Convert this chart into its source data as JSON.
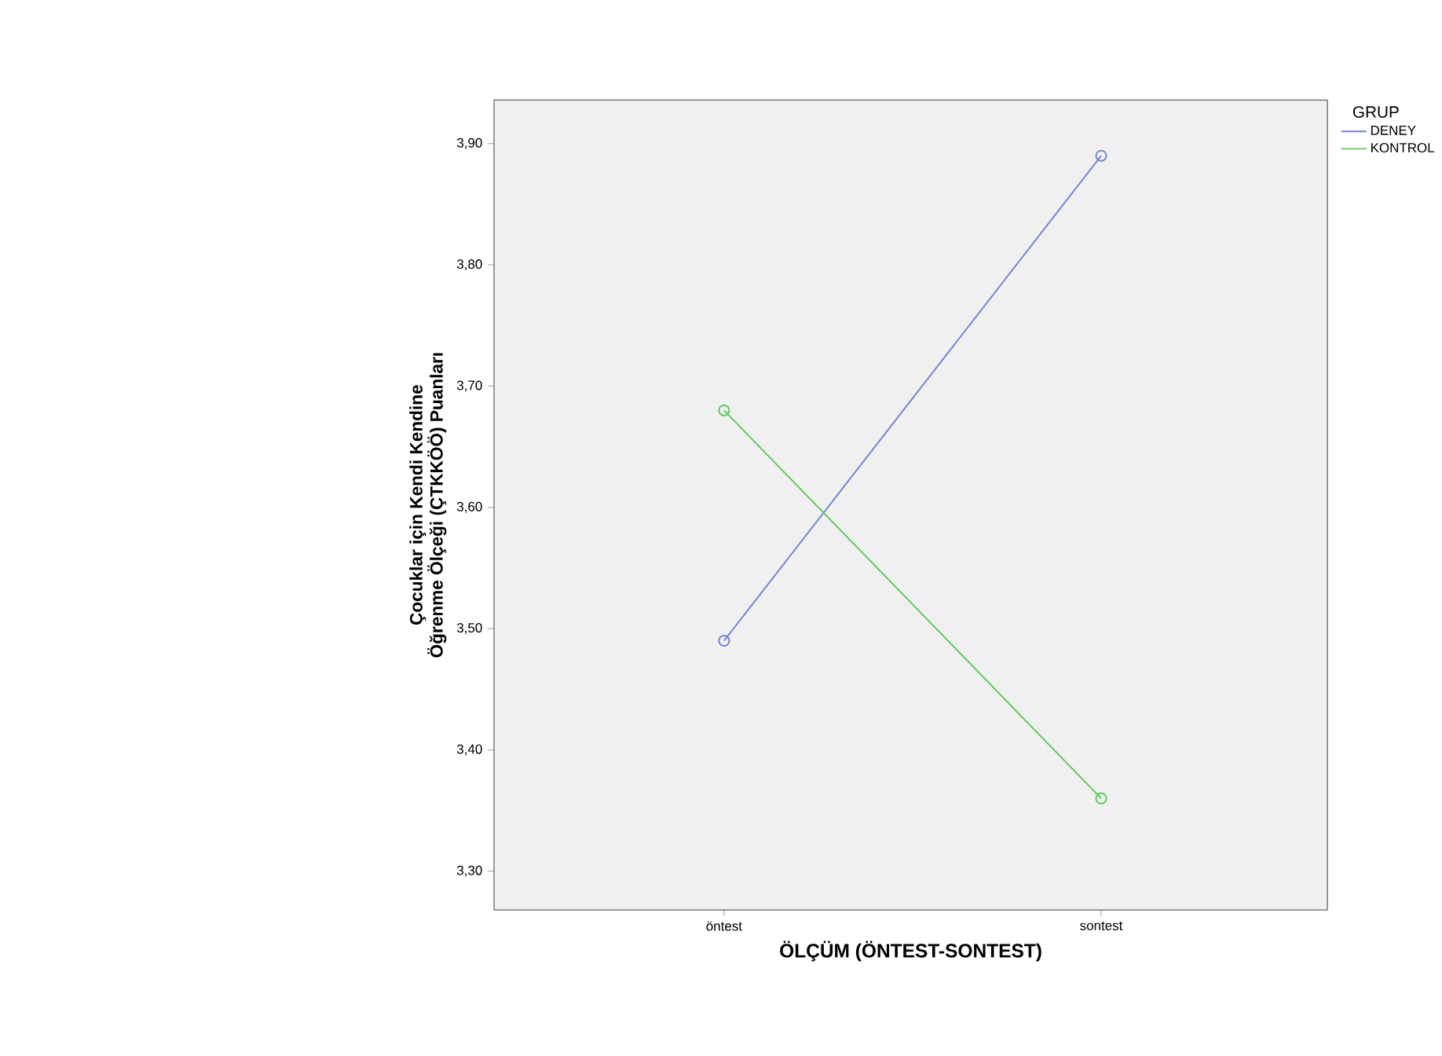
{
  "chart_data": {
    "type": "line",
    "xlabel": "ÖLÇÜM (ÖNTEST-SONTEST)",
    "ylabel": "Çocuklar için Kendi Kendine Öğrenme Ölçeği (ÇTKKÖÖ) Puanları",
    "legend_title": "GRUP",
    "categories": [
      "öntest",
      "sontest"
    ],
    "series": [
      {
        "name": "DENEY",
        "color": "#6b7fd0",
        "values": [
          3.49,
          3.89
        ]
      },
      {
        "name": "KONTROL",
        "color": "#5bc85b",
        "values": [
          3.68,
          3.36
        ]
      }
    ],
    "ylim": [
      3.268,
      3.936
    ],
    "yticks": [
      {
        "value": 3.3,
        "label": "3,30"
      },
      {
        "value": 3.4,
        "label": "3,40"
      },
      {
        "value": 3.5,
        "label": "3,50"
      },
      {
        "value": 3.6,
        "label": "3,60"
      },
      {
        "value": 3.7,
        "label": "3,70"
      },
      {
        "value": 3.8,
        "label": "3,80"
      },
      {
        "value": 3.9,
        "label": "3,90"
      }
    ],
    "grid": false,
    "legend": "top right",
    "marker": "circle",
    "line_style": "solid"
  }
}
